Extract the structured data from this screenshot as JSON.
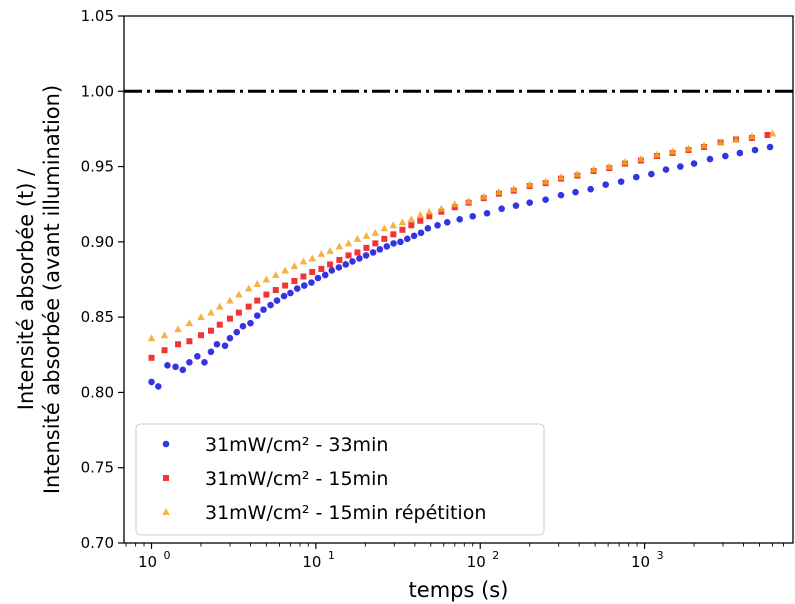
{
  "chart_data": {
    "type": "scatter",
    "xlabel": "temps (s)",
    "ylabel_line1": "Intensité absorbée (t) /",
    "ylabel_line2": "Intensité absorbée (avant illumination)",
    "xscale": "log",
    "xlim": [
      0.68,
      8000
    ],
    "ylim": [
      0.7,
      1.05
    ],
    "y_ticks": [
      "0.70",
      "0.75",
      "0.80",
      "0.85",
      "0.90",
      "0.95",
      "1.00",
      "1.05"
    ],
    "x_ticks": [
      {
        "value": 1,
        "base": "10",
        "exp": "0"
      },
      {
        "value": 10,
        "base": "10",
        "exp": "1"
      },
      {
        "value": 100,
        "base": "10",
        "exp": "2"
      },
      {
        "value": 1000,
        "base": "10",
        "exp": "3"
      }
    ],
    "reference_line": {
      "y": 1.0,
      "style": "dash-dot",
      "color": "#000000"
    },
    "grid": false,
    "legend_position": "lower-left",
    "series": [
      {
        "name": "31mW/cm² - 33min",
        "marker": "circle",
        "color": "#1010e0",
        "points": [
          [
            1.0,
            0.807
          ],
          [
            1.1,
            0.804
          ],
          [
            1.25,
            0.818
          ],
          [
            1.4,
            0.817
          ],
          [
            1.55,
            0.815
          ],
          [
            1.7,
            0.82
          ],
          [
            1.9,
            0.824
          ],
          [
            2.1,
            0.82
          ],
          [
            2.3,
            0.827
          ],
          [
            2.5,
            0.832
          ],
          [
            2.8,
            0.831
          ],
          [
            3.0,
            0.836
          ],
          [
            3.3,
            0.84
          ],
          [
            3.6,
            0.844
          ],
          [
            4.0,
            0.846
          ],
          [
            4.4,
            0.851
          ],
          [
            4.8,
            0.855
          ],
          [
            5.3,
            0.858
          ],
          [
            5.8,
            0.861
          ],
          [
            6.4,
            0.864
          ],
          [
            7.0,
            0.866
          ],
          [
            7.7,
            0.869
          ],
          [
            8.5,
            0.871
          ],
          [
            9.4,
            0.873
          ],
          [
            10.3,
            0.876
          ],
          [
            11.4,
            0.878
          ],
          [
            12.5,
            0.881
          ],
          [
            13.8,
            0.883
          ],
          [
            15.2,
            0.885
          ],
          [
            16.7,
            0.887
          ],
          [
            18.4,
            0.889
          ],
          [
            20.2,
            0.891
          ],
          [
            22.3,
            0.893
          ],
          [
            24.5,
            0.895
          ],
          [
            27.0,
            0.897
          ],
          [
            29.7,
            0.899
          ],
          [
            32.7,
            0.9
          ],
          [
            36.0,
            0.902
          ],
          [
            39.6,
            0.904
          ],
          [
            43.6,
            0.906
          ],
          [
            48.0,
            0.909
          ],
          [
            55.0,
            0.911
          ],
          [
            63.0,
            0.913
          ],
          [
            75.0,
            0.915
          ],
          [
            90.0,
            0.917
          ],
          [
            110.0,
            0.919
          ],
          [
            135.0,
            0.922
          ],
          [
            165.0,
            0.924
          ],
          [
            200.0,
            0.926
          ],
          [
            250.0,
            0.928
          ],
          [
            310.0,
            0.931
          ],
          [
            380.0,
            0.933
          ],
          [
            470.0,
            0.935
          ],
          [
            580.0,
            0.938
          ],
          [
            720.0,
            0.94
          ],
          [
            890.0,
            0.943
          ],
          [
            1100.0,
            0.945
          ],
          [
            1350.0,
            0.948
          ],
          [
            1650.0,
            0.95
          ],
          [
            2000.0,
            0.952
          ],
          [
            2500.0,
            0.955
          ],
          [
            3100.0,
            0.957
          ],
          [
            3800.0,
            0.959
          ],
          [
            4700.0,
            0.961
          ],
          [
            5800.0,
            0.963
          ]
        ]
      },
      {
        "name": "31mW/cm² - 15min",
        "marker": "square",
        "color": "#ee1111",
        "points": [
          [
            1.0,
            0.823
          ],
          [
            1.2,
            0.828
          ],
          [
            1.45,
            0.832
          ],
          [
            1.7,
            0.834
          ],
          [
            2.0,
            0.838
          ],
          [
            2.3,
            0.841
          ],
          [
            2.6,
            0.845
          ],
          [
            3.0,
            0.849
          ],
          [
            3.4,
            0.853
          ],
          [
            3.9,
            0.857
          ],
          [
            4.4,
            0.861
          ],
          [
            5.0,
            0.865
          ],
          [
            5.7,
            0.868
          ],
          [
            6.5,
            0.871
          ],
          [
            7.4,
            0.874
          ],
          [
            8.4,
            0.877
          ],
          [
            9.5,
            0.88
          ],
          [
            10.8,
            0.882
          ],
          [
            12.2,
            0.885
          ],
          [
            13.9,
            0.888
          ],
          [
            15.8,
            0.891
          ],
          [
            17.9,
            0.893
          ],
          [
            20.3,
            0.896
          ],
          [
            23.0,
            0.899
          ],
          [
            26.1,
            0.902
          ],
          [
            29.6,
            0.905
          ],
          [
            33.6,
            0.908
          ],
          [
            38.1,
            0.911
          ],
          [
            43.2,
            0.914
          ],
          [
            49.0,
            0.917
          ],
          [
            58.0,
            0.92
          ],
          [
            70.0,
            0.923
          ],
          [
            85.0,
            0.926
          ],
          [
            105.0,
            0.929
          ],
          [
            130.0,
            0.932
          ],
          [
            160.0,
            0.934
          ],
          [
            200.0,
            0.937
          ],
          [
            250.0,
            0.939
          ],
          [
            310.0,
            0.942
          ],
          [
            390.0,
            0.944
          ],
          [
            490.0,
            0.947
          ],
          [
            610.0,
            0.949
          ],
          [
            760.0,
            0.952
          ],
          [
            950.0,
            0.954
          ],
          [
            1190.0,
            0.957
          ],
          [
            1480.0,
            0.959
          ],
          [
            1850.0,
            0.961
          ],
          [
            2300.0,
            0.963
          ],
          [
            2900.0,
            0.966
          ],
          [
            3600.0,
            0.968
          ],
          [
            4500.0,
            0.969
          ],
          [
            5600.0,
            0.971
          ]
        ]
      },
      {
        "name": "31mW/cm² - 15min répétition",
        "marker": "triangle",
        "color": "#f5a623",
        "points": [
          [
            1.0,
            0.836
          ],
          [
            1.2,
            0.838
          ],
          [
            1.45,
            0.842
          ],
          [
            1.7,
            0.846
          ],
          [
            2.0,
            0.85
          ],
          [
            2.3,
            0.853
          ],
          [
            2.6,
            0.857
          ],
          [
            3.0,
            0.861
          ],
          [
            3.4,
            0.865
          ],
          [
            3.9,
            0.869
          ],
          [
            4.4,
            0.872
          ],
          [
            5.0,
            0.875
          ],
          [
            5.7,
            0.878
          ],
          [
            6.5,
            0.881
          ],
          [
            7.4,
            0.884
          ],
          [
            8.4,
            0.887
          ],
          [
            9.5,
            0.889
          ],
          [
            10.8,
            0.892
          ],
          [
            12.2,
            0.894
          ],
          [
            13.9,
            0.897
          ],
          [
            15.8,
            0.899
          ],
          [
            17.9,
            0.902
          ],
          [
            20.3,
            0.904
          ],
          [
            23.0,
            0.906
          ],
          [
            26.1,
            0.909
          ],
          [
            29.6,
            0.911
          ],
          [
            33.6,
            0.913
          ],
          [
            38.1,
            0.915
          ],
          [
            43.2,
            0.918
          ],
          [
            49.0,
            0.92
          ],
          [
            58.0,
            0.922
          ],
          [
            70.0,
            0.925
          ],
          [
            85.0,
            0.927
          ],
          [
            105.0,
            0.93
          ],
          [
            130.0,
            0.933
          ],
          [
            160.0,
            0.935
          ],
          [
            200.0,
            0.938
          ],
          [
            250.0,
            0.94
          ],
          [
            310.0,
            0.943
          ],
          [
            390.0,
            0.945
          ],
          [
            490.0,
            0.948
          ],
          [
            610.0,
            0.95
          ],
          [
            760.0,
            0.953
          ],
          [
            950.0,
            0.955
          ],
          [
            1190.0,
            0.958
          ],
          [
            1480.0,
            0.96
          ],
          [
            1850.0,
            0.962
          ],
          [
            2300.0,
            0.964
          ],
          [
            2900.0,
            0.966
          ],
          [
            3600.0,
            0.968
          ],
          [
            4500.0,
            0.97
          ],
          [
            6000.0,
            0.972
          ]
        ]
      }
    ]
  }
}
